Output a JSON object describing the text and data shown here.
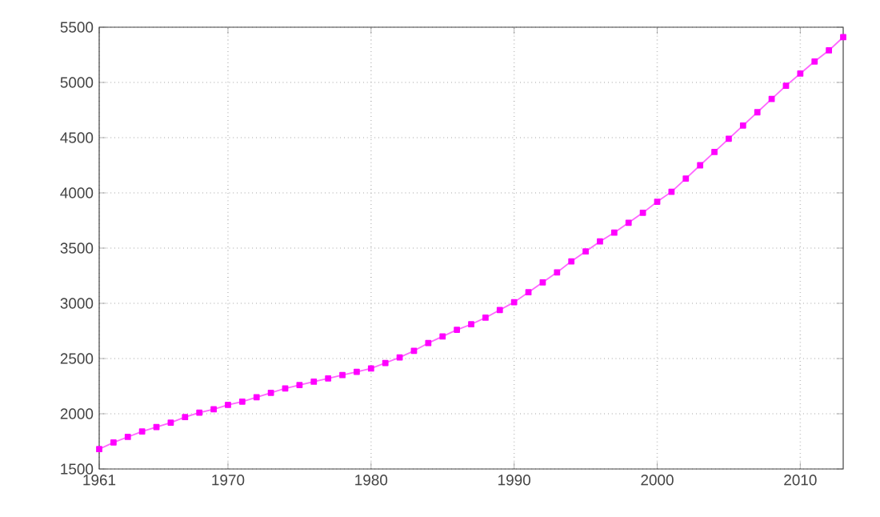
{
  "chart_data": {
    "type": "line",
    "x": [
      1961,
      1962,
      1963,
      1964,
      1965,
      1966,
      1967,
      1968,
      1969,
      1970,
      1971,
      1972,
      1973,
      1974,
      1975,
      1976,
      1977,
      1978,
      1979,
      1980,
      1981,
      1982,
      1983,
      1984,
      1985,
      1986,
      1987,
      1988,
      1989,
      1990,
      1991,
      1992,
      1993,
      1994,
      1995,
      1996,
      1997,
      1998,
      1999,
      2000,
      2001,
      2002,
      2003,
      2004,
      2005,
      2006,
      2007,
      2008,
      2009,
      2010,
      2011,
      2012,
      2013
    ],
    "values": [
      1680,
      1740,
      1790,
      1840,
      1880,
      1920,
      1970,
      2010,
      2040,
      2080,
      2110,
      2150,
      2190,
      2230,
      2260,
      2290,
      2320,
      2350,
      2380,
      2410,
      2460,
      2510,
      2570,
      2640,
      2700,
      2760,
      2810,
      2870,
      2940,
      3010,
      3100,
      3190,
      3280,
      3380,
      3470,
      3560,
      3640,
      3730,
      3820,
      3920,
      4010,
      4130,
      4250,
      4370,
      4490,
      4610,
      4730,
      4850,
      4970,
      5080,
      5190,
      5290,
      5410
    ],
    "color": "#ff00ff",
    "marker": "square",
    "line_style": "solid",
    "grid": true,
    "xlim": [
      1961,
      2013
    ],
    "xticks": [
      1961,
      1970,
      1980,
      1990,
      2000,
      2010
    ],
    "ylim": [
      1500,
      5500
    ],
    "yticks": [
      1500,
      2000,
      2500,
      3000,
      3500,
      4000,
      4500,
      5000,
      5500
    ]
  }
}
